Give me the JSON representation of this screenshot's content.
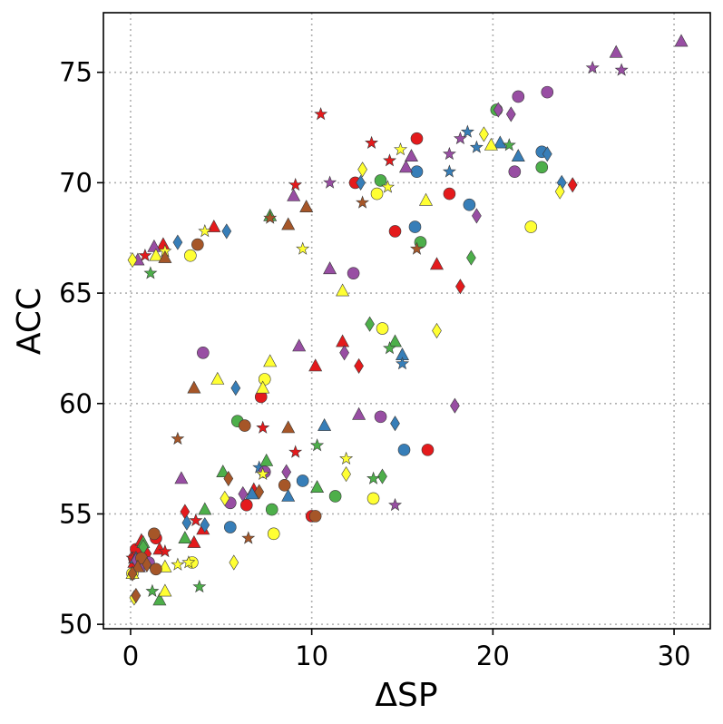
{
  "chart_data": {
    "type": "scatter",
    "xlabel": "ΔSP",
    "ylabel": "ACC",
    "xlim": [
      -1.5,
      32
    ],
    "ylim": [
      49.8,
      77.7
    ],
    "xticks": [
      0,
      10,
      20,
      30
    ],
    "yticks": [
      50,
      55,
      60,
      65,
      70,
      75
    ],
    "grid": true,
    "legend": "none",
    "colors": {
      "red": "#e41a1c",
      "blue": "#377eb8",
      "green": "#4daf4a",
      "purple": "#984ea3",
      "yellow": "#ffff33",
      "brown": "#a65628"
    },
    "series": [
      {
        "color": "red",
        "marker": "circle",
        "points": [
          [
            12.4,
            70.0
          ],
          [
            15.8,
            72.0
          ],
          [
            17.6,
            69.5
          ],
          [
            14.6,
            67.8
          ],
          [
            7.2,
            60.3
          ],
          [
            6.4,
            55.4
          ],
          [
            16.4,
            57.9
          ],
          [
            10.0,
            54.9
          ],
          [
            1.4,
            53.9
          ],
          [
            0.3,
            53.4
          ],
          [
            0.2,
            53.0
          ]
        ]
      },
      {
        "color": "red",
        "marker": "triangle",
        "points": [
          [
            4.6,
            68.0
          ],
          [
            1.8,
            67.2
          ],
          [
            11.7,
            62.8
          ],
          [
            10.2,
            61.7
          ],
          [
            16.9,
            66.3
          ],
          [
            6.8,
            56.1
          ],
          [
            3.5,
            53.7
          ],
          [
            4.0,
            54.3
          ],
          [
            1.6,
            53.4
          ],
          [
            0.6,
            53.8
          ],
          [
            0.2,
            52.8
          ]
        ]
      },
      {
        "color": "red",
        "marker": "diamond",
        "points": [
          [
            18.2,
            65.3
          ],
          [
            24.4,
            69.9
          ],
          [
            12.6,
            61.7
          ],
          [
            3.0,
            55.1
          ],
          [
            0.9,
            53.2
          ]
        ]
      },
      {
        "color": "red",
        "marker": "star",
        "points": [
          [
            10.5,
            73.1
          ],
          [
            13.3,
            71.8
          ],
          [
            14.3,
            71.0
          ],
          [
            9.1,
            69.9
          ],
          [
            0.8,
            66.7
          ],
          [
            7.3,
            58.9
          ],
          [
            9.1,
            57.8
          ],
          [
            3.6,
            54.7
          ],
          [
            1.9,
            53.3
          ],
          [
            0.1,
            53.0
          ]
        ]
      },
      {
        "color": "blue",
        "marker": "circle",
        "points": [
          [
            15.7,
            68.0
          ],
          [
            15.8,
            70.5
          ],
          [
            22.7,
            71.4
          ],
          [
            18.7,
            69.0
          ],
          [
            9.5,
            56.5
          ],
          [
            5.5,
            54.4
          ],
          [
            15.1,
            57.9
          ]
        ]
      },
      {
        "color": "blue",
        "marker": "triangle",
        "points": [
          [
            20.4,
            71.8
          ],
          [
            21.4,
            71.2
          ],
          [
            10.7,
            59.0
          ],
          [
            15.0,
            62.2
          ],
          [
            8.7,
            55.8
          ],
          [
            6.7,
            55.9
          ],
          [
            0.3,
            53.0
          ]
        ]
      },
      {
        "color": "blue",
        "marker": "diamond",
        "points": [
          [
            2.6,
            67.3
          ],
          [
            5.3,
            67.8
          ],
          [
            5.8,
            60.7
          ],
          [
            14.6,
            59.1
          ],
          [
            4.1,
            54.5
          ],
          [
            3.1,
            54.6
          ],
          [
            12.7,
            70.0
          ],
          [
            23.0,
            71.3
          ],
          [
            23.8,
            70.0
          ]
        ]
      },
      {
        "color": "blue",
        "marker": "star",
        "points": [
          [
            18.6,
            72.3
          ],
          [
            19.1,
            71.6
          ],
          [
            17.6,
            70.5
          ],
          [
            15.0,
            61.8
          ],
          [
            7.1,
            57.1
          ],
          [
            0.4,
            52.7
          ]
        ]
      },
      {
        "color": "green",
        "marker": "circle",
        "points": [
          [
            20.2,
            73.3
          ],
          [
            22.7,
            70.7
          ],
          [
            13.8,
            70.1
          ],
          [
            16.0,
            67.3
          ],
          [
            5.9,
            59.2
          ],
          [
            7.8,
            55.2
          ],
          [
            11.3,
            55.8
          ]
        ]
      },
      {
        "color": "green",
        "marker": "triangle",
        "points": [
          [
            7.7,
            68.5
          ],
          [
            14.6,
            62.8
          ],
          [
            7.5,
            57.4
          ],
          [
            10.3,
            56.2
          ],
          [
            5.1,
            56.9
          ],
          [
            4.1,
            55.2
          ],
          [
            3.0,
            53.9
          ],
          [
            1.6,
            51.1
          ],
          [
            0.7,
            53.7
          ]
        ]
      },
      {
        "color": "green",
        "marker": "diamond",
        "points": [
          [
            18.8,
            66.6
          ],
          [
            13.2,
            63.6
          ],
          [
            13.9,
            56.7
          ],
          [
            0.7,
            53.5
          ]
        ]
      },
      {
        "color": "green",
        "marker": "star",
        "points": [
          [
            20.9,
            71.7
          ],
          [
            1.1,
            65.9
          ],
          [
            14.3,
            62.5
          ],
          [
            10.3,
            58.1
          ],
          [
            13.4,
            56.6
          ],
          [
            3.8,
            51.7
          ],
          [
            1.2,
            51.5
          ]
        ]
      },
      {
        "color": "purple",
        "marker": "circle",
        "points": [
          [
            21.4,
            73.9
          ],
          [
            23.0,
            74.1
          ],
          [
            21.2,
            70.5
          ],
          [
            12.3,
            65.9
          ],
          [
            4.0,
            62.3
          ],
          [
            13.8,
            59.4
          ],
          [
            7.4,
            56.9
          ],
          [
            5.5,
            55.5
          ],
          [
            1.0,
            52.8
          ]
        ]
      },
      {
        "color": "purple",
        "marker": "triangle",
        "points": [
          [
            26.8,
            75.9
          ],
          [
            30.4,
            76.4
          ],
          [
            15.5,
            71.2
          ],
          [
            9.0,
            69.4
          ],
          [
            11.0,
            66.1
          ],
          [
            9.3,
            62.6
          ],
          [
            12.6,
            59.5
          ],
          [
            15.2,
            70.7
          ],
          [
            2.8,
            56.6
          ],
          [
            1.3,
            67.1
          ],
          [
            0.4,
            66.5
          ]
        ]
      },
      {
        "color": "purple",
        "marker": "diamond",
        "points": [
          [
            20.3,
            73.3
          ],
          [
            21.0,
            73.1
          ],
          [
            19.1,
            68.5
          ],
          [
            11.8,
            62.3
          ],
          [
            17.9,
            59.9
          ],
          [
            6.2,
            55.9
          ],
          [
            8.6,
            56.9
          ],
          [
            0.3,
            52.9
          ]
        ]
      },
      {
        "color": "purple",
        "marker": "star",
        "points": [
          [
            25.5,
            75.2
          ],
          [
            27.1,
            75.1
          ],
          [
            18.2,
            72.0
          ],
          [
            17.6,
            71.3
          ],
          [
            11.0,
            70.0
          ],
          [
            14.6,
            55.4
          ],
          [
            0.6,
            52.6
          ]
        ]
      },
      {
        "color": "yellow",
        "marker": "circle",
        "points": [
          [
            22.1,
            68.0
          ],
          [
            13.6,
            69.5
          ],
          [
            13.9,
            63.4
          ],
          [
            7.4,
            61.1
          ],
          [
            13.4,
            55.7
          ],
          [
            7.9,
            54.1
          ],
          [
            3.3,
            66.7
          ],
          [
            3.4,
            52.8
          ],
          [
            0.1,
            52.3
          ]
        ]
      },
      {
        "color": "yellow",
        "marker": "triangle",
        "points": [
          [
            19.9,
            71.7
          ],
          [
            16.3,
            69.2
          ],
          [
            11.7,
            65.1
          ],
          [
            7.7,
            61.9
          ],
          [
            4.8,
            61.1
          ],
          [
            7.3,
            60.7
          ],
          [
            1.4,
            66.7
          ],
          [
            1.9,
            51.5
          ],
          [
            1.9,
            52.6
          ],
          [
            0.1,
            52.3
          ]
        ]
      },
      {
        "color": "yellow",
        "marker": "diamond",
        "points": [
          [
            19.5,
            72.2
          ],
          [
            23.7,
            69.6
          ],
          [
            12.8,
            70.6
          ],
          [
            16.9,
            63.3
          ],
          [
            11.9,
            56.8
          ],
          [
            5.2,
            55.7
          ],
          [
            5.7,
            52.8
          ],
          [
            0.2,
            51.2
          ],
          [
            0.1,
            66.5
          ]
        ]
      },
      {
        "color": "yellow",
        "marker": "star",
        "points": [
          [
            14.9,
            71.5
          ],
          [
            14.2,
            69.8
          ],
          [
            9.5,
            67.0
          ],
          [
            4.1,
            67.8
          ],
          [
            11.9,
            57.5
          ],
          [
            7.3,
            56.8
          ],
          [
            3.2,
            52.8
          ],
          [
            2.6,
            52.7
          ],
          [
            1.9,
            66.9
          ]
        ]
      },
      {
        "color": "brown",
        "marker": "circle",
        "points": [
          [
            3.7,
            67.2
          ],
          [
            6.3,
            59.0
          ],
          [
            8.5,
            56.3
          ],
          [
            10.2,
            54.9
          ],
          [
            1.3,
            54.1
          ],
          [
            1.4,
            52.5
          ],
          [
            0.6,
            53.0
          ]
        ]
      },
      {
        "color": "brown",
        "marker": "triangle",
        "points": [
          [
            9.7,
            68.9
          ],
          [
            8.7,
            68.1
          ],
          [
            3.5,
            60.7
          ],
          [
            8.7,
            58.9
          ],
          [
            1.9,
            66.6
          ],
          [
            0.4,
            52.6
          ]
        ]
      },
      {
        "color": "brown",
        "marker": "diamond",
        "points": [
          [
            5.4,
            56.6
          ],
          [
            7.1,
            56.0
          ],
          [
            0.9,
            52.7
          ],
          [
            0.3,
            51.3
          ],
          [
            0.1,
            52.3
          ]
        ]
      },
      {
        "color": "brown",
        "marker": "star",
        "points": [
          [
            15.8,
            67.0
          ],
          [
            12.8,
            69.1
          ],
          [
            7.7,
            68.4
          ],
          [
            2.6,
            58.4
          ],
          [
            6.5,
            53.9
          ]
        ]
      }
    ]
  }
}
